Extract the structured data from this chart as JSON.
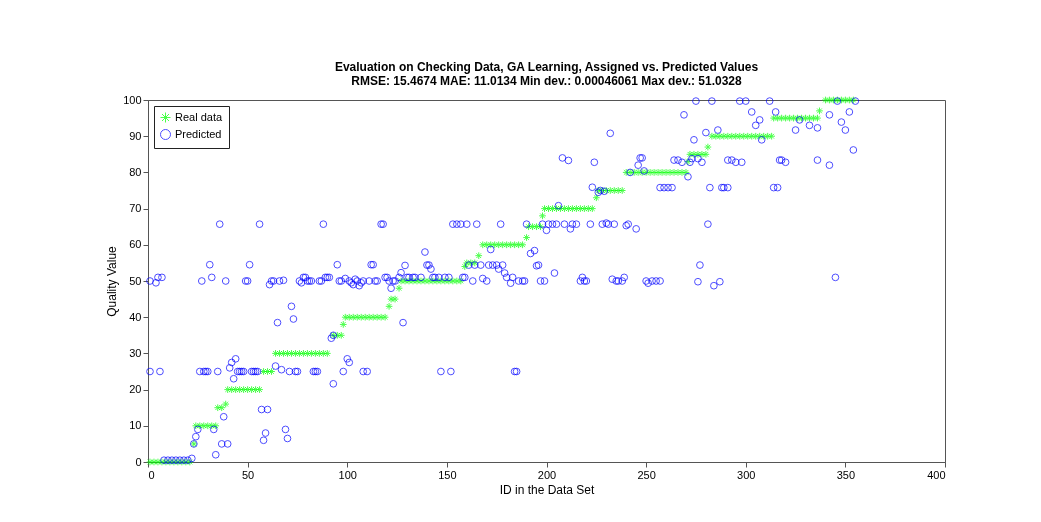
{
  "chart_data": {
    "type": "scatter",
    "title": "Evaluation on Checking Data, GA Learning, Assigned vs. Predicted Values",
    "subtitle": "RMSE: 15.4674  MAE: 11.0134  Min dev.: 0.00046061  Max dev.: 51.0328",
    "xlabel": "ID in the Data Set",
    "ylabel": "Quality Value",
    "xlim": [
      0,
      400
    ],
    "xticks": [
      0,
      50,
      100,
      150,
      200,
      250,
      300,
      350,
      400
    ],
    "ylim": [
      0,
      100
    ],
    "yticks": [
      0,
      10,
      20,
      30,
      40,
      50,
      60,
      70,
      80,
      90,
      100
    ],
    "legend": "top left",
    "series": [
      {
        "name": "Real data",
        "color": "#00ff00",
        "marker": "cross",
        "x": [
          1,
          3,
          5,
          7,
          9,
          11,
          13,
          15,
          17,
          19,
          21,
          23,
          24,
          26,
          28,
          30,
          32,
          34,
          35,
          37,
          39,
          40,
          42,
          44,
          46,
          48,
          50,
          52,
          54,
          56,
          58,
          60,
          62,
          64,
          66,
          68,
          70,
          72,
          74,
          76,
          78,
          80,
          82,
          84,
          86,
          88,
          90,
          93,
          95,
          97,
          98,
          99,
          101,
          103,
          105,
          107,
          109,
          111,
          113,
          115,
          117,
          119,
          121,
          122,
          124,
          126,
          127,
          129,
          131,
          133,
          135,
          137,
          139,
          141,
          143,
          145,
          147,
          149,
          151,
          153,
          155,
          157,
          159,
          160,
          162,
          164,
          166,
          168,
          170,
          172,
          174,
          176,
          178,
          180,
          182,
          184,
          186,
          188,
          190,
          191,
          193,
          195,
          197,
          198,
          199,
          201,
          203,
          205,
          207,
          209,
          211,
          213,
          215,
          217,
          219,
          221,
          223,
          225,
          226,
          228,
          230,
          232,
          234,
          236,
          238,
          240,
          242,
          244,
          246,
          248,
          250,
          252,
          254,
          256,
          258,
          260,
          262,
          264,
          266,
          268,
          270,
          271,
          272,
          274,
          276,
          278,
          280,
          281,
          283,
          285,
          287,
          289,
          291,
          293,
          295,
          297,
          299,
          301,
          303,
          305,
          307,
          309,
          311,
          313,
          314,
          316,
          318,
          320,
          322,
          324,
          326,
          328,
          330,
          332,
          334,
          336,
          337,
          340,
          342,
          344,
          346,
          348,
          350,
          352,
          354
        ],
        "values": [
          0,
          0,
          0,
          0,
          0,
          0,
          0,
          0,
          0,
          0,
          0,
          5,
          10,
          10,
          10,
          10,
          10,
          10,
          15,
          15,
          16,
          20,
          20,
          20,
          20,
          20,
          20,
          20,
          20,
          20,
          25,
          25,
          25,
          30,
          30,
          30,
          30,
          30,
          30,
          30,
          30,
          30,
          30,
          30,
          30,
          30,
          30,
          35,
          35,
          35,
          38,
          40,
          40,
          40,
          40,
          40,
          40,
          40,
          40,
          40,
          40,
          40,
          43,
          45,
          45,
          48,
          50,
          50,
          50,
          50,
          50,
          50,
          50,
          50,
          50,
          50,
          50,
          50,
          50,
          50,
          50,
          50,
          54,
          55,
          55,
          55,
          57,
          60,
          60,
          60,
          60,
          60,
          60,
          60,
          60,
          60,
          60,
          60,
          62,
          65,
          65,
          65,
          65,
          68,
          70,
          70,
          70,
          70,
          70,
          70,
          70,
          70,
          70,
          70,
          70,
          70,
          70,
          73,
          75,
          75,
          75,
          75,
          75,
          75,
          75,
          80,
          80,
          80,
          80,
          80,
          80,
          80,
          80,
          80,
          80,
          80,
          80,
          80,
          80,
          80,
          80,
          83,
          85,
          85,
          85,
          85,
          85,
          87,
          90,
          90,
          90,
          90,
          90,
          90,
          90,
          90,
          90,
          90,
          90,
          90,
          90,
          90,
          90,
          90,
          95,
          95,
          95,
          95,
          95,
          95,
          95,
          95,
          95,
          95,
          95,
          95,
          97,
          100,
          100,
          100,
          100,
          100,
          100,
          100,
          100
        ]
      },
      {
        "name": "Predicted",
        "color": "#0000ff",
        "marker": "circle",
        "x": [
          1,
          1,
          4,
          5,
          6,
          7,
          8,
          10,
          12,
          14,
          16,
          18,
          20,
          22,
          23,
          24,
          25,
          26,
          27,
          28,
          29,
          30,
          31,
          32,
          33,
          34,
          35,
          36,
          37,
          38,
          39,
          40,
          41,
          42,
          43,
          44,
          45,
          46,
          47,
          48,
          49,
          50,
          51,
          52,
          53,
          54,
          55,
          56,
          57,
          58,
          59,
          60,
          61,
          62,
          63,
          64,
          65,
          66,
          67,
          68,
          69,
          70,
          71,
          72,
          73,
          74,
          75,
          76,
          77,
          78,
          79,
          80,
          81,
          82,
          83,
          84,
          85,
          86,
          87,
          88,
          89,
          90,
          91,
          92,
          93,
          93,
          95,
          96,
          97,
          98,
          99,
          100,
          101,
          101,
          102,
          103,
          104,
          105,
          106,
          107,
          108,
          108,
          110,
          111,
          112,
          113,
          114,
          115,
          117,
          118,
          119,
          120,
          121,
          122,
          123,
          124,
          126,
          127,
          128,
          129,
          130,
          131,
          133,
          134,
          137,
          139,
          140,
          141,
          142,
          143,
          144,
          146,
          147,
          149,
          151,
          152,
          153,
          155,
          157,
          158,
          159,
          160,
          161,
          163,
          164,
          165,
          167,
          168,
          170,
          171,
          172,
          173,
          175,
          176,
          177,
          178,
          179,
          180,
          182,
          183,
          184,
          185,
          186,
          188,
          189,
          190,
          192,
          194,
          195,
          196,
          197,
          198,
          199,
          200,
          201,
          203,
          204,
          205,
          206,
          208,
          209,
          211,
          212,
          213,
          215,
          217,
          218,
          219,
          220,
          222,
          223,
          224,
          226,
          227,
          228,
          229,
          230,
          231,
          232,
          233,
          234,
          235,
          236,
          238,
          239,
          240,
          241,
          242,
          245,
          246,
          247,
          248,
          249,
          250,
          251,
          253,
          255,
          257,
          257,
          259,
          261,
          263,
          264,
          266,
          268,
          269,
          271,
          272,
          273,
          274,
          275,
          276,
          276,
          277,
          278,
          280,
          281,
          282,
          283,
          284,
          286,
          287,
          288,
          289,
          291,
          291,
          293,
          295,
          297,
          298,
          300,
          303,
          305,
          307,
          308,
          312,
          314,
          315,
          316,
          317,
          318,
          320,
          325,
          327,
          332,
          336,
          336,
          342,
          342,
          345,
          346,
          348,
          350,
          352,
          354,
          355
        ],
        "values": [
          25,
          50,
          49.5,
          51,
          25,
          51,
          0.5,
          0.5,
          0.5,
          0.5,
          0.5,
          0.5,
          0.5,
          1,
          5,
          7,
          9,
          25,
          50,
          25,
          25,
          25,
          54.5,
          51,
          9,
          2,
          25,
          65.7,
          5,
          12.5,
          50,
          5,
          26,
          27.5,
          23,
          28.5,
          25,
          25,
          25,
          25,
          50,
          50,
          54.5,
          25,
          25,
          25,
          25,
          65.7,
          14.5,
          6,
          8,
          14.5,
          49,
          50,
          50,
          26.5,
          38.5,
          50,
          25.5,
          50.2,
          9,
          6.5,
          25,
          43,
          39.5,
          25,
          25,
          50,
          49.5,
          51,
          51,
          50,
          50,
          50,
          25,
          25,
          25,
          50,
          50,
          65.7,
          51,
          51,
          51,
          34.2,
          35,
          21.6,
          54.5,
          50,
          50,
          25,
          50.7,
          28.5,
          27.5,
          50,
          49.5,
          49,
          50.5,
          50,
          48.7,
          49.5,
          50,
          25,
          25,
          50,
          54.5,
          54.5,
          50,
          50,
          65.7,
          65.7,
          51,
          51,
          50,
          48,
          50,
          50,
          51,
          52.3,
          38.5,
          54.3,
          51,
          51,
          51,
          51,
          51,
          58,
          54.4,
          54.4,
          53.3,
          51,
          51,
          51,
          25,
          51,
          51,
          25,
          65.7,
          65.7,
          65.7,
          51,
          51,
          65.7,
          54.4,
          50,
          54.4,
          65.7,
          54.4,
          50.7,
          50,
          54.4,
          58.7,
          54.4,
          54.4,
          53.3,
          65.7,
          54.4,
          52.2,
          51,
          49.4,
          51,
          25,
          25,
          50,
          50,
          50,
          65.7,
          57.6,
          58.4,
          54.2,
          54.4,
          50,
          65.7,
          50,
          64,
          65.7,
          65.7,
          52.2,
          65.7,
          70.8,
          84,
          65.7,
          83.3,
          64.4,
          65.7,
          65.7,
          50,
          51,
          50,
          50,
          65.7,
          75.9,
          82.8,
          74.5,
          75,
          65.7,
          74.8,
          66,
          65.7,
          90.8,
          50.5,
          65.7,
          50,
          50,
          50,
          51,
          65.3,
          65.7,
          80,
          64.4,
          82,
          84,
          84,
          80.4,
          50,
          49.4,
          50,
          50,
          50,
          75.8,
          75.8,
          75.8,
          75.8,
          83.4,
          83.4,
          82.8,
          95.9,
          78.8,
          82.8,
          83.8,
          89,
          99.7,
          49.8,
          83.8,
          54.4,
          82.8,
          91,
          65.7,
          75.8,
          99.7,
          48.7,
          91.7,
          49.8,
          75.8,
          75.8,
          75.8,
          83.4,
          83.4,
          82.8,
          99.7,
          82.8,
          99.7,
          96.7,
          93,
          94.5,
          89,
          99.7,
          75.8,
          96.7,
          75.8,
          83.4,
          83.4,
          82.8,
          91.7,
          94.5,
          93,
          83.4,
          92.3,
          95.9,
          82,
          51,
          99.7,
          93.9,
          91.7,
          96.7,
          86.2,
          99.7
        ]
      }
    ]
  }
}
